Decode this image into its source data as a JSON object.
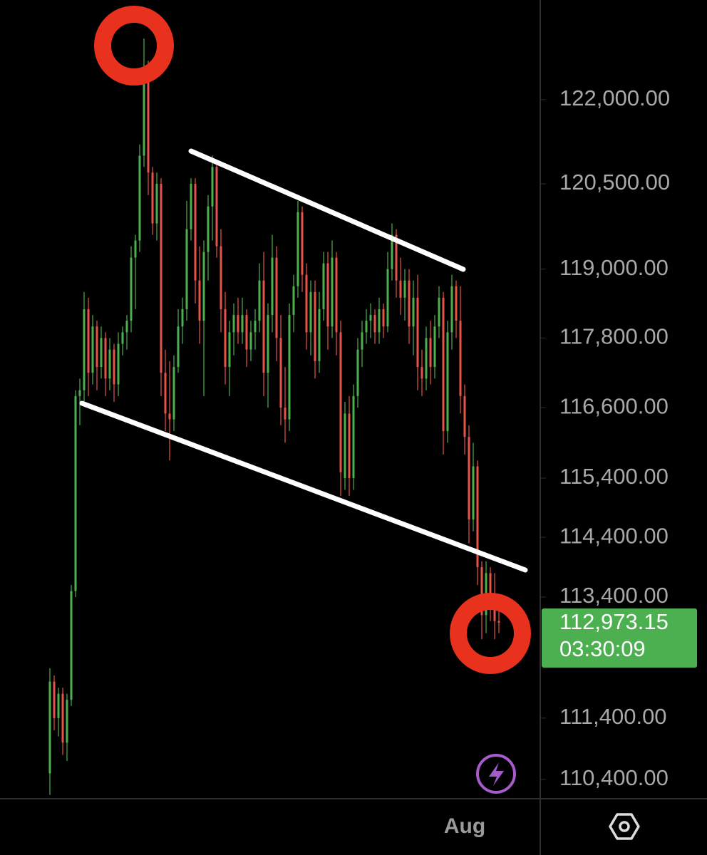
{
  "chart_data": {
    "type": "candlestick",
    "log_scale": true,
    "up_color": "#4caf50",
    "down_color": "#e5534b",
    "ylim": [
      110100,
      123800
    ],
    "yticks": [
      {
        "value": 122000,
        "label": "122,000.00"
      },
      {
        "value": 120500,
        "label": "120,500.00"
      },
      {
        "value": 119000,
        "label": "119,000.00"
      },
      {
        "value": 117800,
        "label": "117,800.00"
      },
      {
        "value": 116600,
        "label": "116,600.00"
      },
      {
        "value": 115400,
        "label": "115,400.00"
      },
      {
        "value": 114400,
        "label": "114,400.00"
      },
      {
        "value": 113400,
        "label": "113,400.00"
      },
      {
        "value": 111400,
        "label": "111,400.00"
      },
      {
        "value": 110400,
        "label": "110,400.00"
      }
    ],
    "last_price": {
      "value": 112973.15,
      "label": "112,973.15"
    },
    "countdown": "03:30:09",
    "categories": [
      null,
      null,
      null,
      null,
      null,
      null,
      null,
      null,
      null,
      null,
      null,
      null,
      null,
      null,
      null,
      null,
      null,
      null,
      null,
      null,
      null,
      null,
      null,
      null,
      null,
      null,
      null,
      null,
      null,
      null,
      null,
      null,
      null,
      null,
      null,
      null,
      null,
      null,
      null,
      null,
      null,
      null,
      null,
      null,
      null,
      null,
      null,
      null,
      null,
      null,
      null,
      null,
      null,
      null,
      null,
      null,
      null,
      null,
      null,
      null,
      null,
      null,
      null,
      null,
      null,
      null,
      null,
      null,
      null,
      null,
      null,
      null,
      null,
      null,
      null,
      null,
      null,
      null,
      null,
      null,
      null,
      null,
      null,
      null,
      null,
      null,
      null,
      null,
      null,
      null,
      null,
      null,
      null,
      null,
      null,
      null,
      null,
      null,
      "Aug",
      null,
      null,
      null,
      null,
      null,
      null,
      null
    ],
    "open": [
      110500,
      112000,
      111400,
      111800,
      111000,
      111700,
      113500,
      116800,
      116900,
      118300,
      117200,
      118000,
      117300,
      117800,
      117100,
      117600,
      117000,
      117700,
      117900,
      118100,
      119200,
      119500,
      121000,
      122400,
      120700,
      119800,
      120500,
      117200,
      116500,
      116400,
      117300,
      118000,
      118300,
      119700,
      120500,
      118800,
      118100,
      119300,
      120100,
      120800,
      119400,
      118300,
      117300,
      117900,
      118200,
      117900,
      118200,
      117600,
      117900,
      118100,
      118800,
      117200,
      118200,
      119200,
      117800,
      116600,
      116400,
      118200,
      118700,
      120000,
      118900,
      117900,
      118600,
      117400,
      118300,
      119100,
      118000,
      119200,
      117900,
      115400,
      116500,
      115400,
      116800,
      117600,
      117900,
      118100,
      118200,
      117900,
      118300,
      118000,
      119000,
      119600,
      118800,
      118500,
      118800,
      118000,
      118500,
      117300,
      117100,
      117800,
      117300,
      118000,
      118500,
      116200,
      117900,
      118700,
      118100,
      116800,
      116100,
      114700,
      115600,
      113900,
      113100,
      113800,
      113200,
      113000
    ],
    "high": [
      112220,
      112100,
      111900,
      111900,
      111800,
      113600,
      116900,
      117100,
      118600,
      118500,
      118200,
      118100,
      118000,
      117900,
      117800,
      117700,
      117900,
      118000,
      118200,
      119400,
      119600,
      121200,
      123100,
      122700,
      120800,
      120700,
      120600,
      117600,
      117400,
      117500,
      118300,
      118500,
      120200,
      120600,
      120600,
      119400,
      119500,
      120300,
      121000,
      120900,
      119700,
      118600,
      118100,
      118400,
      118500,
      118500,
      118300,
      118100,
      118300,
      119100,
      119300,
      118400,
      119600,
      119400,
      118200,
      117300,
      118400,
      118900,
      120200,
      120100,
      119100,
      118800,
      118800,
      118600,
      119300,
      119300,
      119500,
      119300,
      118100,
      116700,
      116800,
      117000,
      117800,
      118100,
      118300,
      118400,
      118300,
      118500,
      118400,
      119300,
      119800,
      119700,
      119200,
      119000,
      119000,
      118800,
      118900,
      117600,
      118000,
      118100,
      118200,
      118700,
      118600,
      118100,
      118900,
      118800,
      118700,
      117000,
      116300,
      116000,
      115700,
      114000,
      114000,
      113900,
      113800,
      113400
    ],
    "low": [
      110150,
      111200,
      111100,
      110800,
      110700,
      111600,
      113400,
      116300,
      116700,
      116800,
      117000,
      116900,
      117100,
      116800,
      116900,
      116700,
      116800,
      117500,
      117600,
      117900,
      118300,
      119300,
      120800,
      120300,
      119600,
      119500,
      116800,
      116200,
      115700,
      116200,
      117200,
      117700,
      118100,
      119500,
      118400,
      117700,
      116800,
      118800,
      119500,
      119200,
      117900,
      117000,
      116800,
      117500,
      117700,
      117700,
      117300,
      117400,
      117600,
      117900,
      116800,
      116600,
      117900,
      117400,
      116300,
      116000,
      116200,
      117900,
      118500,
      118600,
      117600,
      117500,
      117100,
      117200,
      118100,
      117600,
      117800,
      117500,
      115100,
      115200,
      115100,
      115200,
      116600,
      117300,
      117700,
      117800,
      117700,
      117700,
      117800,
      117900,
      118800,
      118500,
      118200,
      118100,
      117700,
      117500,
      116900,
      116800,
      116900,
      117000,
      117100,
      117800,
      115800,
      116000,
      117600,
      117800,
      116500,
      115800,
      114300,
      114500,
      113600,
      112700,
      112800,
      113000,
      112700,
      112800
    ],
    "close": [
      112000,
      111400,
      111800,
      111000,
      111700,
      113500,
      116800,
      116900,
      118300,
      117200,
      118000,
      117300,
      117800,
      117100,
      117600,
      117000,
      117700,
      117900,
      118100,
      119200,
      119500,
      121000,
      122400,
      120700,
      119800,
      120500,
      117200,
      116500,
      116400,
      117300,
      118000,
      118300,
      119700,
      120500,
      118800,
      118100,
      119300,
      120100,
      120800,
      119400,
      118300,
      117300,
      117900,
      118200,
      117900,
      118200,
      117600,
      117900,
      118100,
      118800,
      117200,
      118200,
      119200,
      117800,
      116600,
      116400,
      118200,
      118700,
      120000,
      118900,
      117900,
      118600,
      117400,
      118300,
      119100,
      118000,
      119200,
      117900,
      115500,
      116500,
      115400,
      116800,
      117600,
      117900,
      118100,
      118200,
      117900,
      118300,
      118000,
      119000,
      119600,
      118800,
      118500,
      118800,
      118000,
      118500,
      117300,
      117100,
      117800,
      117300,
      118000,
      118500,
      116200,
      117900,
      118700,
      118100,
      116800,
      116100,
      114700,
      115600,
      113900,
      113100,
      113800,
      113200,
      113000,
      112973.15
    ]
  }
}
